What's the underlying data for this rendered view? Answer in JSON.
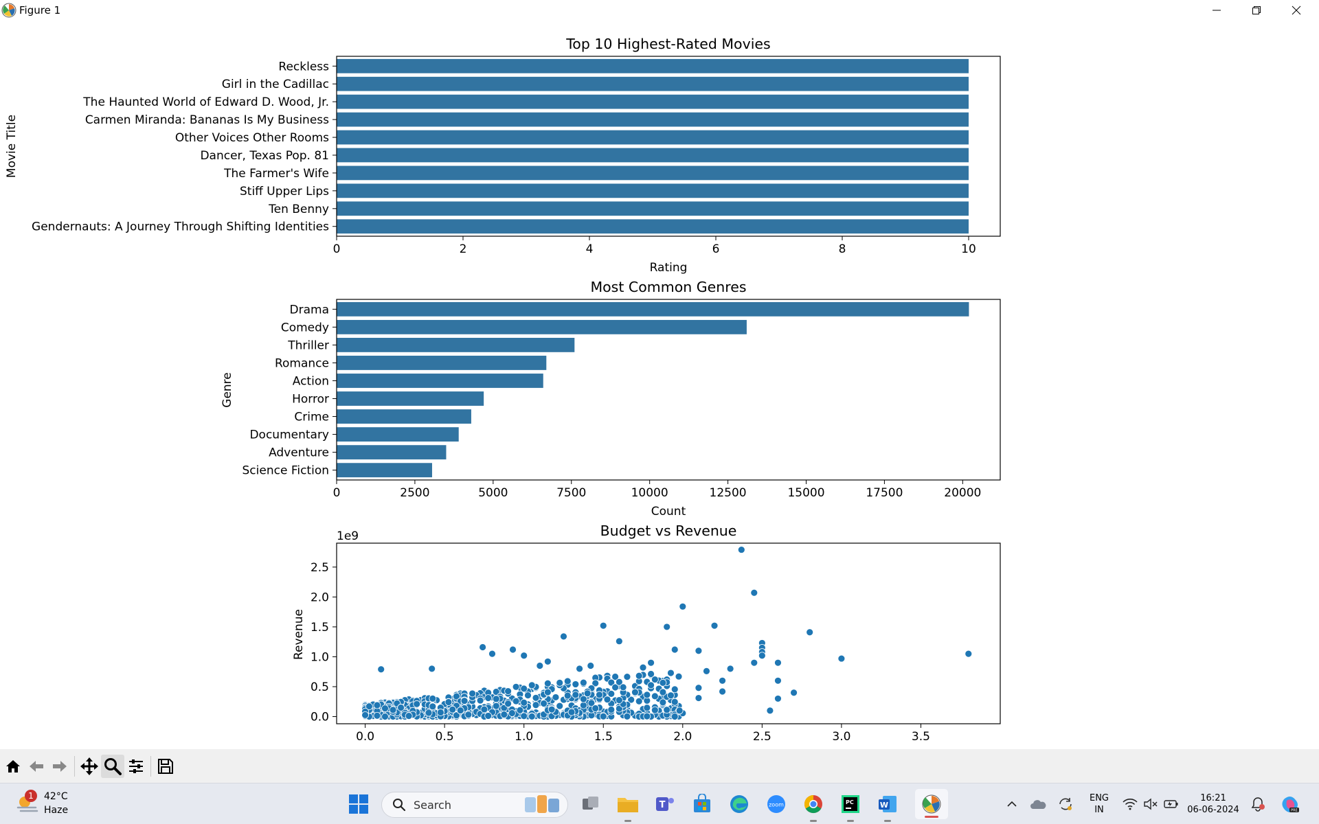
{
  "window": {
    "title": "Figure 1",
    "icon": "matplotlib-icon"
  },
  "window_controls": [
    "minimize-icon",
    "maximize-icon",
    "close-icon"
  ],
  "toolbar": {
    "buttons": [
      "home-icon",
      "back-arrow-icon",
      "forward-arrow-icon",
      "pan-icon",
      "zoom-icon",
      "configure-subplots-icon",
      "save-icon"
    ],
    "active": "zoom-icon"
  },
  "colors": {
    "bar": "#3274a1",
    "point": "#1f77b4"
  },
  "chart_data": [
    {
      "type": "bar",
      "orientation": "horizontal",
      "title": "Top 10 Highest-Rated Movies",
      "xlabel": "Rating",
      "ylabel": "Movie Title",
      "categories": [
        "Reckless",
        "Girl in the Cadillac",
        "The Haunted World of Edward D. Wood, Jr.",
        "Carmen Miranda: Bananas Is My Business",
        "Other Voices Other Rooms",
        "Dancer, Texas Pop. 81",
        "The Farmer's Wife",
        "Stiff Upper Lips",
        "Ten Benny",
        "Gendernauts: A Journey Through Shifting Identities"
      ],
      "values": [
        10,
        10,
        10,
        10,
        10,
        10,
        10,
        10,
        10,
        10
      ],
      "xlim": [
        0,
        10.5
      ],
      "xticks": [
        0,
        2,
        4,
        6,
        8,
        10
      ]
    },
    {
      "type": "bar",
      "orientation": "horizontal",
      "title": "Most Common Genres",
      "xlabel": "Count",
      "ylabel": "Genre",
      "categories": [
        "Drama",
        "Comedy",
        "Thriller",
        "Romance",
        "Action",
        "Horror",
        "Crime",
        "Documentary",
        "Adventure",
        "Science Fiction"
      ],
      "values": [
        20200,
        13100,
        7600,
        6700,
        6600,
        4700,
        4300,
        3900,
        3500,
        3050
      ],
      "xlim": [
        0,
        21200
      ],
      "xticks": [
        0,
        2500,
        5000,
        7500,
        10000,
        12500,
        15000,
        17500,
        20000
      ]
    },
    {
      "type": "scatter",
      "title": "Budget vs Revenue",
      "ylabel": "Revenue",
      "y_offset_label": "1e9",
      "xlim": [
        -0.18,
        4.0
      ],
      "ylim": [
        -0.12,
        2.9
      ],
      "xticks": [
        0.0,
        0.5,
        1.0,
        1.5,
        2.0,
        2.5,
        3.0,
        3.5
      ],
      "yticks": [
        0.0,
        0.5,
        1.0,
        1.5,
        2.0,
        2.5
      ],
      "points": [
        [
          2.37,
          2.79
        ],
        [
          2.45,
          2.07
        ],
        [
          2.0,
          1.84
        ],
        [
          3.8,
          1.05
        ],
        [
          3.0,
          0.97
        ],
        [
          2.8,
          1.41
        ],
        [
          2.2,
          1.52
        ],
        [
          1.9,
          1.5
        ],
        [
          1.5,
          1.52
        ],
        [
          1.25,
          1.34
        ],
        [
          1.6,
          1.26
        ],
        [
          2.1,
          1.1
        ],
        [
          1.95,
          1.12
        ],
        [
          2.5,
          1.23
        ],
        [
          2.5,
          1.15
        ],
        [
          2.5,
          1.08
        ],
        [
          2.5,
          1.02
        ],
        [
          2.6,
          0.9
        ],
        [
          2.45,
          0.9
        ],
        [
          2.3,
          0.8
        ],
        [
          2.15,
          0.76
        ],
        [
          2.6,
          0.6
        ],
        [
          2.7,
          0.4
        ],
        [
          2.6,
          0.3
        ],
        [
          2.55,
          0.1
        ],
        [
          2.25,
          0.6
        ],
        [
          2.25,
          0.42
        ],
        [
          2.1,
          0.31
        ],
        [
          2.1,
          0.48
        ],
        [
          1.98,
          0.1
        ],
        [
          0.1,
          0.79
        ],
        [
          0.42,
          0.8
        ],
        [
          0.74,
          1.16
        ],
        [
          0.8,
          1.05
        ],
        [
          0.93,
          1.12
        ],
        [
          1.0,
          1.02
        ],
        [
          1.1,
          0.85
        ],
        [
          1.15,
          0.92
        ],
        [
          1.35,
          0.8
        ],
        [
          1.42,
          0.85
        ],
        [
          1.75,
          0.82
        ],
        [
          1.8,
          0.9
        ]
      ],
      "dense_region": {
        "x": [
          0.0,
          2.0
        ],
        "y": [
          0.0,
          0.75
        ],
        "n": 900,
        "seed": 7
      }
    }
  ],
  "taskbar": {
    "weather": {
      "temp": "42°C",
      "condition": "Haze",
      "badge": "1"
    },
    "search_placeholder": "Search",
    "apps": [
      "start-icon",
      "search-icon",
      "task-view-icon",
      "file-explorer-icon",
      "teams-icon",
      "store-icon",
      "edge-icon",
      "zoom-app-icon",
      "chrome-icon",
      "pycharm-icon",
      "word-icon",
      "matplotlib-app-icon"
    ],
    "tray": {
      "lang1": "ENG",
      "lang2": "IN",
      "time": "16:21",
      "date": "06-06-2024"
    }
  }
}
